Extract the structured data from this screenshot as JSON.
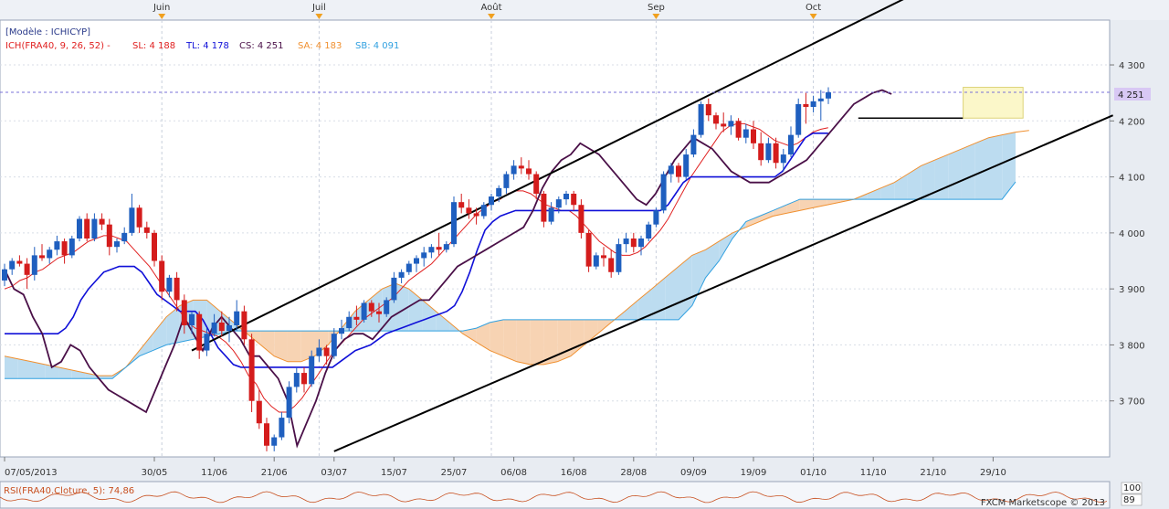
{
  "header": {
    "model_label": "[Modèle : ICHICYP]",
    "ich_label": "ICH(FRA40, 9, 26, 52) -",
    "sl_label": "SL: 4 188",
    "tl_label": "TL: 4 178",
    "cs_label": "CS: 4 251",
    "sa_label": "SA: 4 183",
    "sb_label": "SB: 4 091"
  },
  "footer": {
    "rsi_label": "RSI(FRA40.Cloture, 5): 74,86",
    "copyright": "FXCM Marketscope © 2013",
    "rsi_ticks": [
      "100",
      "89"
    ]
  },
  "colors": {
    "background": "#e8ecf2",
    "plot_bg": "#ffffff",
    "bull": "#1f5fbf",
    "bear": "#d41c1c",
    "tenkan": "#e02020",
    "kijun": "#1010d8",
    "chikou": "#4a1048",
    "senkou_a": "#f09030",
    "senkou_b": "#30a0e0",
    "cloud_bull": "#bcdcf0",
    "cloud_bear": "#f7d3b3",
    "month_marker": "#f0a020",
    "price_label_bg": "#d8c8f4"
  },
  "chart_data": {
    "type": "candlestick",
    "instrument": "FRA40",
    "current_price": 4251,
    "price_label": "4 251",
    "y_axis": {
      "min": 3600,
      "max": 4380,
      "ticks": [
        3700,
        3800,
        3900,
        4000,
        4100,
        4200,
        4300
      ],
      "tick_labels": [
        "3 700",
        "3 800",
        "3 900",
        "4 000",
        "4 100",
        "4 200",
        "4 300"
      ]
    },
    "x_axis": {
      "labels": [
        "07/05/2013",
        "30/05",
        "11/06",
        "21/06",
        "03/07",
        "15/07",
        "25/07",
        "06/08",
        "16/08",
        "28/08",
        "09/09",
        "19/09",
        "01/10",
        "11/10",
        "21/10",
        "29/10"
      ],
      "label_bar_index": [
        0,
        20,
        28,
        36,
        44,
        52,
        60,
        68,
        76,
        84,
        92,
        100,
        108,
        116,
        124,
        132
      ]
    },
    "month_markers": [
      {
        "label": "Juin",
        "bar": 21
      },
      {
        "label": "Juil",
        "bar": 42
      },
      {
        "label": "Août",
        "bar": 65
      },
      {
        "label": "Sep",
        "bar": 87
      },
      {
        "label": "Oct",
        "bar": 108
      }
    ],
    "ohlc": [
      [
        3915,
        3945,
        3905,
        3935
      ],
      [
        3935,
        3955,
        3925,
        3950
      ],
      [
        3950,
        3960,
        3940,
        3945
      ],
      [
        3945,
        3955,
        3900,
        3925
      ],
      [
        3925,
        3975,
        3915,
        3960
      ],
      [
        3960,
        3980,
        3950,
        3955
      ],
      [
        3955,
        3975,
        3945,
        3970
      ],
      [
        3970,
        3995,
        3960,
        3985
      ],
      [
        3985,
        3990,
        3945,
        3960
      ],
      [
        3960,
        3995,
        3955,
        3990
      ],
      [
        3990,
        4030,
        3985,
        4025
      ],
      [
        4025,
        4035,
        3985,
        3990
      ],
      [
        3990,
        4035,
        3985,
        4025
      ],
      [
        4025,
        4035,
        4005,
        4015
      ],
      [
        4015,
        4025,
        3960,
        3975
      ],
      [
        3975,
        3990,
        3965,
        3985
      ],
      [
        3985,
        4010,
        3980,
        4000
      ],
      [
        4000,
        4070,
        3995,
        4045
      ],
      [
        4045,
        4050,
        4000,
        4010
      ],
      [
        4010,
        4020,
        3990,
        4000
      ],
      [
        4000,
        4005,
        3940,
        3950
      ],
      [
        3950,
        3960,
        3880,
        3895
      ],
      [
        3895,
        3925,
        3885,
        3920
      ],
      [
        3920,
        3930,
        3860,
        3880
      ],
      [
        3880,
        3890,
        3820,
        3835
      ],
      [
        3835,
        3860,
        3820,
        3855
      ],
      [
        3855,
        3860,
        3775,
        3790
      ],
      [
        3790,
        3830,
        3780,
        3820
      ],
      [
        3820,
        3855,
        3815,
        3840
      ],
      [
        3840,
        3860,
        3815,
        3825
      ],
      [
        3825,
        3850,
        3805,
        3835
      ],
      [
        3835,
        3880,
        3825,
        3860
      ],
      [
        3860,
        3870,
        3800,
        3810
      ],
      [
        3810,
        3820,
        3680,
        3700
      ],
      [
        3700,
        3720,
        3650,
        3660
      ],
      [
        3660,
        3670,
        3610,
        3620
      ],
      [
        3620,
        3640,
        3610,
        3635
      ],
      [
        3635,
        3680,
        3630,
        3670
      ],
      [
        3670,
        3735,
        3660,
        3725
      ],
      [
        3725,
        3760,
        3715,
        3750
      ],
      [
        3750,
        3760,
        3715,
        3730
      ],
      [
        3730,
        3790,
        3725,
        3780
      ],
      [
        3780,
        3810,
        3770,
        3795
      ],
      [
        3795,
        3800,
        3765,
        3780
      ],
      [
        3780,
        3830,
        3775,
        3820
      ],
      [
        3820,
        3845,
        3810,
        3830
      ],
      [
        3830,
        3860,
        3825,
        3850
      ],
      [
        3850,
        3870,
        3835,
        3845
      ],
      [
        3845,
        3880,
        3840,
        3875
      ],
      [
        3875,
        3880,
        3850,
        3860
      ],
      [
        3860,
        3875,
        3840,
        3855
      ],
      [
        3855,
        3885,
        3850,
        3880
      ],
      [
        3880,
        3930,
        3875,
        3920
      ],
      [
        3920,
        3935,
        3910,
        3930
      ],
      [
        3930,
        3950,
        3925,
        3945
      ],
      [
        3945,
        3960,
        3930,
        3955
      ],
      [
        3955,
        3975,
        3940,
        3965
      ],
      [
        3965,
        3980,
        3955,
        3975
      ],
      [
        3975,
        4000,
        3960,
        3970
      ],
      [
        3970,
        3985,
        3965,
        3980
      ],
      [
        3980,
        4065,
        3975,
        4055
      ],
      [
        4055,
        4070,
        4035,
        4045
      ],
      [
        4045,
        4060,
        4025,
        4035
      ],
      [
        4035,
        4045,
        4015,
        4030
      ],
      [
        4030,
        4055,
        4025,
        4050
      ],
      [
        4050,
        4070,
        4040,
        4065
      ],
      [
        4065,
        4085,
        4055,
        4080
      ],
      [
        4080,
        4110,
        4070,
        4105
      ],
      [
        4105,
        4130,
        4095,
        4120
      ],
      [
        4120,
        4135,
        4105,
        4115
      ],
      [
        4115,
        4130,
        4095,
        4105
      ],
      [
        4105,
        4110,
        4060,
        4070
      ],
      [
        4070,
        4075,
        4010,
        4020
      ],
      [
        4020,
        4055,
        4015,
        4045
      ],
      [
        4045,
        4065,
        4035,
        4060
      ],
      [
        4060,
        4075,
        4050,
        4070
      ],
      [
        4070,
        4075,
        4040,
        4050
      ],
      [
        4050,
        4060,
        3990,
        4000
      ],
      [
        4000,
        4005,
        3930,
        3940
      ],
      [
        3940,
        3965,
        3935,
        3960
      ],
      [
        3960,
        3975,
        3940,
        3955
      ],
      [
        3955,
        3970,
        3920,
        3930
      ],
      [
        3930,
        3990,
        3925,
        3980
      ],
      [
        3980,
        4000,
        3965,
        3990
      ],
      [
        3990,
        4000,
        3965,
        3975
      ],
      [
        3975,
        3995,
        3960,
        3990
      ],
      [
        3990,
        4020,
        3985,
        4015
      ],
      [
        4015,
        4045,
        4010,
        4040
      ],
      [
        4040,
        4110,
        4035,
        4105
      ],
      [
        4105,
        4125,
        4090,
        4120
      ],
      [
        4120,
        4125,
        4090,
        4100
      ],
      [
        4100,
        4150,
        4095,
        4140
      ],
      [
        4140,
        4185,
        4135,
        4175
      ],
      [
        4175,
        4235,
        4170,
        4230
      ],
      [
        4230,
        4240,
        4200,
        4210
      ],
      [
        4210,
        4215,
        4185,
        4195
      ],
      [
        4195,
        4215,
        4180,
        4190
      ],
      [
        4190,
        4210,
        4175,
        4200
      ],
      [
        4200,
        4205,
        4165,
        4170
      ],
      [
        4170,
        4195,
        4160,
        4185
      ],
      [
        4185,
        4200,
        4150,
        4160
      ],
      [
        4160,
        4180,
        4120,
        4130
      ],
      [
        4130,
        4170,
        4125,
        4160
      ],
      [
        4160,
        4170,
        4115,
        4125
      ],
      [
        4125,
        4150,
        4110,
        4140
      ],
      [
        4140,
        4190,
        4135,
        4175
      ],
      [
        4175,
        4240,
        4170,
        4230
      ],
      [
        4230,
        4250,
        4195,
        4225
      ],
      [
        4225,
        4245,
        4215,
        4235
      ],
      [
        4235,
        4255,
        4200,
        4240
      ],
      [
        4240,
        4260,
        4230,
        4251
      ]
    ],
    "tenkan": [
      3900,
      3905,
      3915,
      3920,
      3930,
      3935,
      3945,
      3955,
      3960,
      3965,
      3975,
      3985,
      3990,
      3995,
      3995,
      3990,
      3985,
      3970,
      3955,
      3940,
      3920,
      3900,
      3880,
      3860,
      3840,
      3830,
      3825,
      3820,
      3815,
      3805,
      3790,
      3770,
      3745,
      3730,
      3705,
      3690,
      3680,
      3680,
      3690,
      3705,
      3725,
      3745,
      3765,
      3785,
      3800,
      3815,
      3830,
      3845,
      3855,
      3865,
      3875,
      3885,
      3900,
      3915,
      3925,
      3935,
      3945,
      3960,
      3975,
      3990,
      4005,
      4020,
      4035,
      4045,
      4055,
      4060,
      4070,
      4075,
      4075,
      4070,
      4060,
      4050,
      4045,
      4040,
      4040,
      4030,
      4015,
      4000,
      3985,
      3975,
      3965,
      3960,
      3960,
      3965,
      3975,
      3990,
      4005,
      4025,
      4050,
      4075,
      4100,
      4120,
      4140,
      4160,
      4180,
      4190,
      4195,
      4195,
      4190,
      4185,
      4175,
      4165,
      4160,
      4155,
      4160,
      4170,
      4180,
      4185,
      4188
    ],
    "kijun": [
      3820,
      3820,
      3820,
      3820,
      3820,
      3820,
      3820,
      3820,
      3830,
      3850,
      3880,
      3900,
      3915,
      3930,
      3935,
      3940,
      3940,
      3940,
      3930,
      3910,
      3890,
      3880,
      3870,
      3860,
      3860,
      3860,
      3845,
      3820,
      3795,
      3780,
      3765,
      3760,
      3760,
      3760,
      3760,
      3760,
      3760,
      3760,
      3760,
      3760,
      3760,
      3760,
      3760,
      3760,
      3770,
      3780,
      3790,
      3795,
      3800,
      3810,
      3820,
      3825,
      3830,
      3835,
      3840,
      3845,
      3850,
      3855,
      3860,
      3870,
      3895,
      3930,
      3970,
      4005,
      4020,
      4030,
      4035,
      4040,
      4040,
      4040,
      4040,
      4040,
      4040,
      4040,
      4040,
      4040,
      4040,
      4040,
      4040,
      4040,
      4040,
      4040,
      4040,
      4040,
      4040,
      4040,
      4040,
      4050,
      4070,
      4090,
      4100,
      4100,
      4100,
      4100,
      4100,
      4100,
      4100,
      4100,
      4100,
      4100,
      4100,
      4100,
      4110,
      4130,
      4150,
      4170,
      4178,
      4178,
      4178
    ],
    "senkou_a": [
      3780,
      3775,
      3770,
      3765,
      3760,
      3755,
      3750,
      3745,
      3745,
      3760,
      3790,
      3820,
      3850,
      3870,
      3880,
      3880,
      3860,
      3840,
      3820,
      3800,
      3780,
      3770,
      3770,
      3780,
      3800,
      3830,
      3860,
      3880,
      3900,
      3910,
      3900,
      3880,
      3860,
      3840,
      3820,
      3805,
      3790,
      3780,
      3770,
      3765,
      3765,
      3770,
      3780,
      3800,
      3820,
      3840,
      3860,
      3880,
      3900,
      3920,
      3940,
      3960,
      3970,
      3985,
      4000,
      4010,
      4020,
      4030,
      4035,
      4040,
      4045,
      4050,
      4055,
      4060,
      4070,
      4080,
      4090,
      4105,
      4120,
      4130,
      4140,
      4150,
      4160,
      4170,
      4175,
      4180,
      4183
    ],
    "senkou_b": [
      3740,
      3740,
      3740,
      3740,
      3740,
      3740,
      3740,
      3740,
      3740,
      3760,
      3780,
      3790,
      3800,
      3805,
      3810,
      3815,
      3820,
      3825,
      3825,
      3825,
      3825,
      3825,
      3825,
      3825,
      3825,
      3825,
      3825,
      3825,
      3825,
      3825,
      3825,
      3825,
      3825,
      3825,
      3825,
      3830,
      3840,
      3845,
      3845,
      3845,
      3845,
      3845,
      3845,
      3845,
      3845,
      3845,
      3845,
      3845,
      3845,
      3845,
      3845,
      3870,
      3920,
      3950,
      3990,
      4020,
      4030,
      4040,
      4050,
      4060,
      4060,
      4060,
      4060,
      4060,
      4060,
      4060,
      4060,
      4060,
      4060,
      4060,
      4060,
      4060,
      4060,
      4060,
      4060,
      4091
    ],
    "chikou": [
      3935,
      3900,
      3890,
      3850,
      3820,
      3760,
      3770,
      3800,
      3790,
      3760,
      3740,
      3720,
      3710,
      3700,
      3690,
      3680,
      3720,
      3760,
      3800,
      3850,
      3820,
      3790,
      3830,
      3850,
      3830,
      3810,
      3780,
      3780,
      3760,
      3740,
      3700,
      3620,
      3660,
      3700,
      3750,
      3790,
      3810,
      3820,
      3820,
      3810,
      3830,
      3850,
      3860,
      3870,
      3880,
      3880,
      3900,
      3920,
      3940,
      3950,
      3960,
      3970,
      3980,
      3990,
      4000,
      4010,
      4040,
      4080,
      4110,
      4130,
      4140,
      4160,
      4150,
      4140,
      4120,
      4100,
      4080,
      4060,
      4050,
      4070,
      4100,
      4130,
      4150,
      4170,
      4160,
      4150,
      4130,
      4110,
      4100,
      4090,
      4090,
      4090,
      4100,
      4110,
      4120,
      4130,
      4150,
      4170,
      4190,
      4210,
      4230,
      4240,
      4250,
      4255,
      4248
    ],
    "trendlines": [
      {
        "from": [
          25,
          3790
        ],
        "to": [
          128,
          4470
        ],
        "color": "#000000"
      },
      {
        "from": [
          44,
          3610
        ],
        "to": [
          148,
          4210
        ],
        "color": "#000000"
      }
    ],
    "resistance_line": {
      "from_bar": 114,
      "to_bar": 128,
      "value": 4205
    },
    "highlight_box": {
      "from_bar": 128,
      "to_bar": 136,
      "low": 4205,
      "high": 4260
    }
  }
}
